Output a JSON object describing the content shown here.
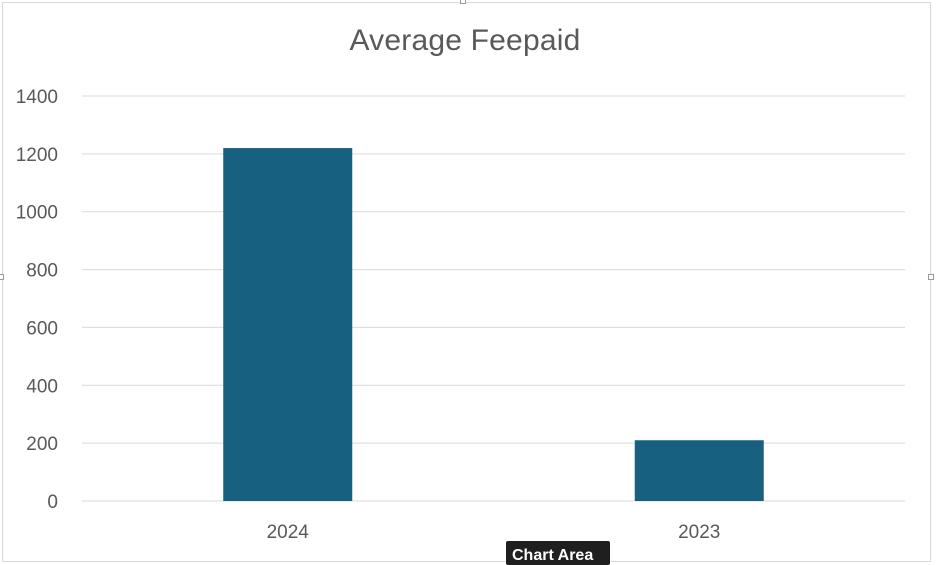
{
  "chart_data": {
    "type": "bar",
    "title": "Average Feepaid",
    "categories": [
      "2024",
      "2023"
    ],
    "series": [
      {
        "values": [
          1220,
          210
        ]
      }
    ],
    "ylim": [
      0,
      1400
    ],
    "yticks": [
      0,
      200,
      400,
      600,
      800,
      1000,
      1200,
      1400
    ],
    "xlabel": "",
    "ylabel": "",
    "grid": "horizontal",
    "legend": "none",
    "bar_color": "#17607f",
    "grid_color": "#d9d9d9",
    "text_color": "#595959"
  },
  "tooltip": {
    "text": "Chart Area"
  }
}
